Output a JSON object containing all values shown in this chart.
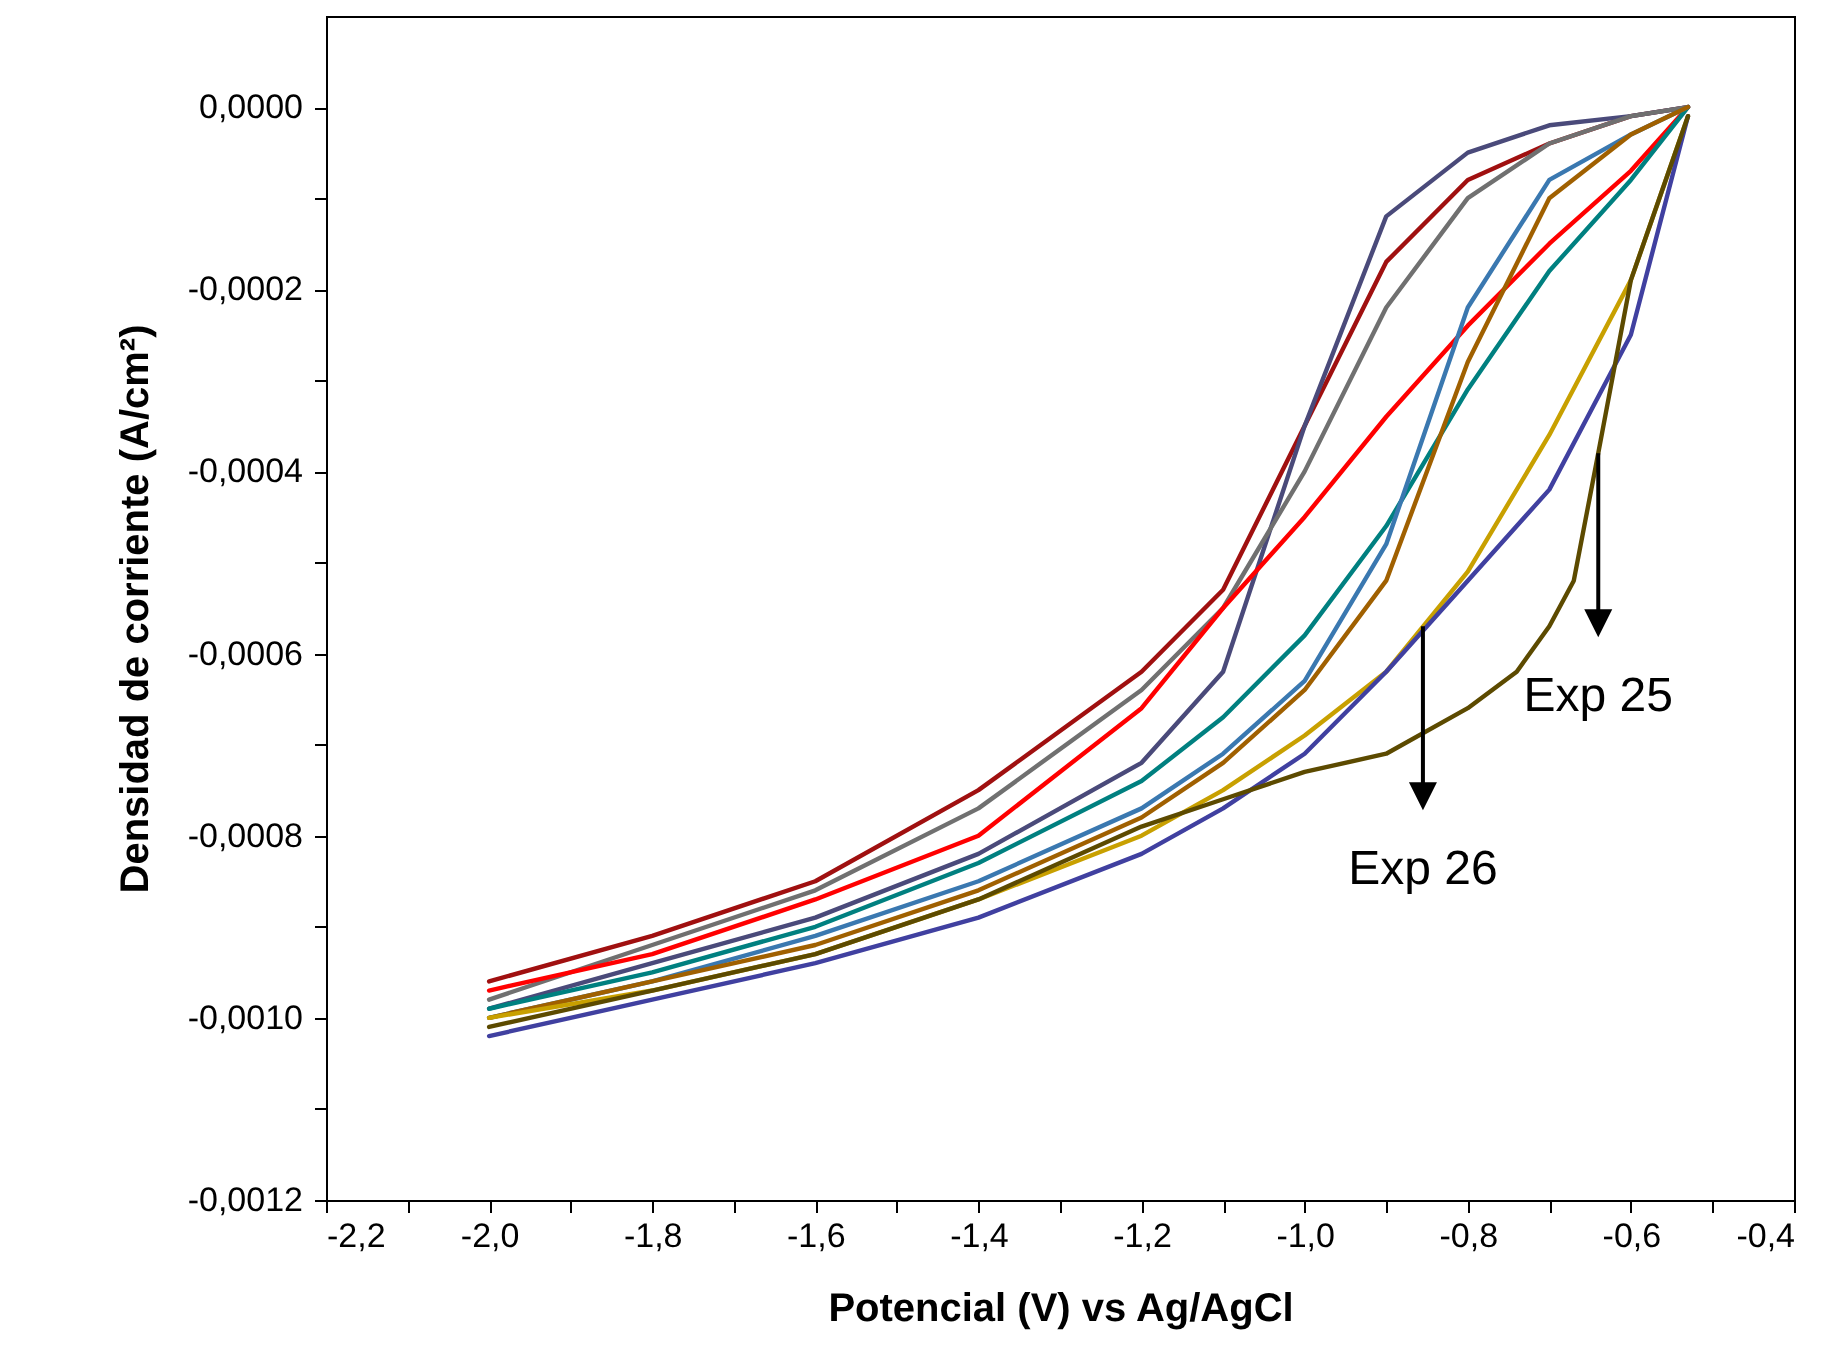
{
  "chart_data": {
    "type": "line",
    "xlabel": "Potencial (V) vs Ag/AgCl",
    "ylabel": "Densidad de corriente (A/cm²)",
    "x": [
      -2.0,
      -1.8,
      -1.6,
      -1.4,
      -1.2,
      -1.1,
      -1.0,
      -0.9,
      -0.8,
      -0.7,
      -0.6,
      -0.53
    ],
    "series": [
      {
        "color": "#a01010",
        "values": [
          -0.00096,
          -0.00091,
          -0.00085,
          -0.00075,
          -0.00062,
          -0.00053,
          -0.00035,
          -0.00017,
          -8e-05,
          -4e-05,
          -1e-05,
          0
        ]
      },
      {
        "color": "#4a4a7a",
        "values": [
          -0.00099,
          -0.00094,
          -0.00089,
          -0.00082,
          -0.00072,
          -0.00062,
          -0.00035,
          -0.00012,
          -5e-05,
          -2e-05,
          -1e-05,
          0
        ]
      },
      {
        "color": "#707070",
        "values": [
          -0.00098,
          -0.00092,
          -0.00086,
          -0.00077,
          -0.00064,
          -0.00055,
          -0.0004,
          -0.00022,
          -0.0001,
          -4e-05,
          -1e-05,
          0
        ]
      },
      {
        "color": "#ff0000",
        "values": [
          -0.00097,
          -0.00093,
          -0.00087,
          -0.0008,
          -0.00066,
          -0.00055,
          -0.00045,
          -0.00034,
          -0.00024,
          -0.00015,
          -7e-05,
          0
        ]
      },
      {
        "color": "#008080",
        "values": [
          -0.00099,
          -0.00095,
          -0.0009,
          -0.00083,
          -0.00074,
          -0.00067,
          -0.00058,
          -0.00046,
          -0.00031,
          -0.00018,
          -8e-05,
          0
        ]
      },
      {
        "color": "#3a78b0",
        "values": [
          -0.001,
          -0.00096,
          -0.00091,
          -0.00085,
          -0.00077,
          -0.00071,
          -0.00063,
          -0.00048,
          -0.00022,
          -8e-05,
          -3e-05,
          0
        ]
      },
      {
        "color": "#a06000",
        "values": [
          -0.001,
          -0.00096,
          -0.00092,
          -0.00086,
          -0.00078,
          -0.00072,
          -0.00064,
          -0.00052,
          -0.00028,
          -0.0001,
          -3e-05,
          0
        ]
      },
      {
        "color": "#c8a000",
        "values": [
          -0.001,
          -0.00097,
          -0.00093,
          -0.00087,
          -0.0008,
          -0.00075,
          -0.00069,
          -0.00062,
          -0.00051,
          -0.00036,
          -0.00019,
          -1e-05
        ]
      },
      {
        "color": "#4040a0",
        "values": [
          -0.00102,
          -0.00098,
          -0.00094,
          -0.00089,
          -0.00082,
          -0.00077,
          -0.00071,
          -0.00062,
          -0.00052,
          -0.00042,
          -0.00025,
          -1e-05
        ]
      },
      {
        "color": "#5c4a00",
        "x": [
          -2.0,
          -1.8,
          -1.6,
          -1.4,
          -1.2,
          -1.1,
          -1.0,
          -0.9,
          -0.8,
          -0.74,
          -0.7,
          -0.67,
          -0.64,
          -0.6,
          -0.53
        ],
        "values": [
          -0.00101,
          -0.00097,
          -0.00093,
          -0.00087,
          -0.00079,
          -0.00076,
          -0.00073,
          -0.00071,
          -0.00066,
          -0.00062,
          -0.00057,
          -0.00052,
          -0.00038,
          -0.00019,
          -1e-05
        ]
      }
    ],
    "annotations": [
      {
        "text": "Exp 25",
        "x": -0.64,
        "y": -0.00038
      },
      {
        "text": "Exp 26",
        "x": -0.855,
        "y": -0.00057
      }
    ],
    "xlim": [
      -2.2,
      -0.4
    ],
    "xticks": [
      {
        "value": -2.2,
        "label": "-2,2"
      },
      {
        "value": -2.1,
        "label": null
      },
      {
        "value": -2.0,
        "label": "-2,0"
      },
      {
        "value": -1.9,
        "label": null
      },
      {
        "value": -1.8,
        "label": "-1,8"
      },
      {
        "value": -1.7,
        "label": null
      },
      {
        "value": -1.6,
        "label": "-1,6"
      },
      {
        "value": -1.5,
        "label": null
      },
      {
        "value": -1.4,
        "label": "-1,4"
      },
      {
        "value": -1.3,
        "label": null
      },
      {
        "value": -1.2,
        "label": "-1,2"
      },
      {
        "value": -1.1,
        "label": null
      },
      {
        "value": -1.0,
        "label": "-1,0"
      },
      {
        "value": -0.9,
        "label": null
      },
      {
        "value": -0.8,
        "label": "-0,8"
      },
      {
        "value": -0.7,
        "label": null
      },
      {
        "value": -0.6,
        "label": "-0,6"
      },
      {
        "value": -0.5,
        "label": null
      },
      {
        "value": -0.4,
        "label": "-0,4"
      }
    ],
    "ylim": [
      -0.0012,
      0.0001
    ],
    "yticks": [
      {
        "value": -0.0012,
        "label": "-0,0012"
      },
      {
        "value": -0.0011,
        "label": null
      },
      {
        "value": -0.001,
        "label": "-0,0010"
      },
      {
        "value": -0.0009,
        "label": null
      },
      {
        "value": -0.0008,
        "label": "-0,0008"
      },
      {
        "value": -0.0007,
        "label": null
      },
      {
        "value": -0.0006,
        "label": "-0,0006"
      },
      {
        "value": -0.0005,
        "label": null
      },
      {
        "value": -0.0004,
        "label": "-0,0004"
      },
      {
        "value": -0.0003,
        "label": null
      },
      {
        "value": -0.0002,
        "label": "-0,0002"
      },
      {
        "value": -0.0001,
        "label": null
      },
      {
        "value": 0,
        "label": "0,0000"
      }
    ],
    "grid": false
  }
}
